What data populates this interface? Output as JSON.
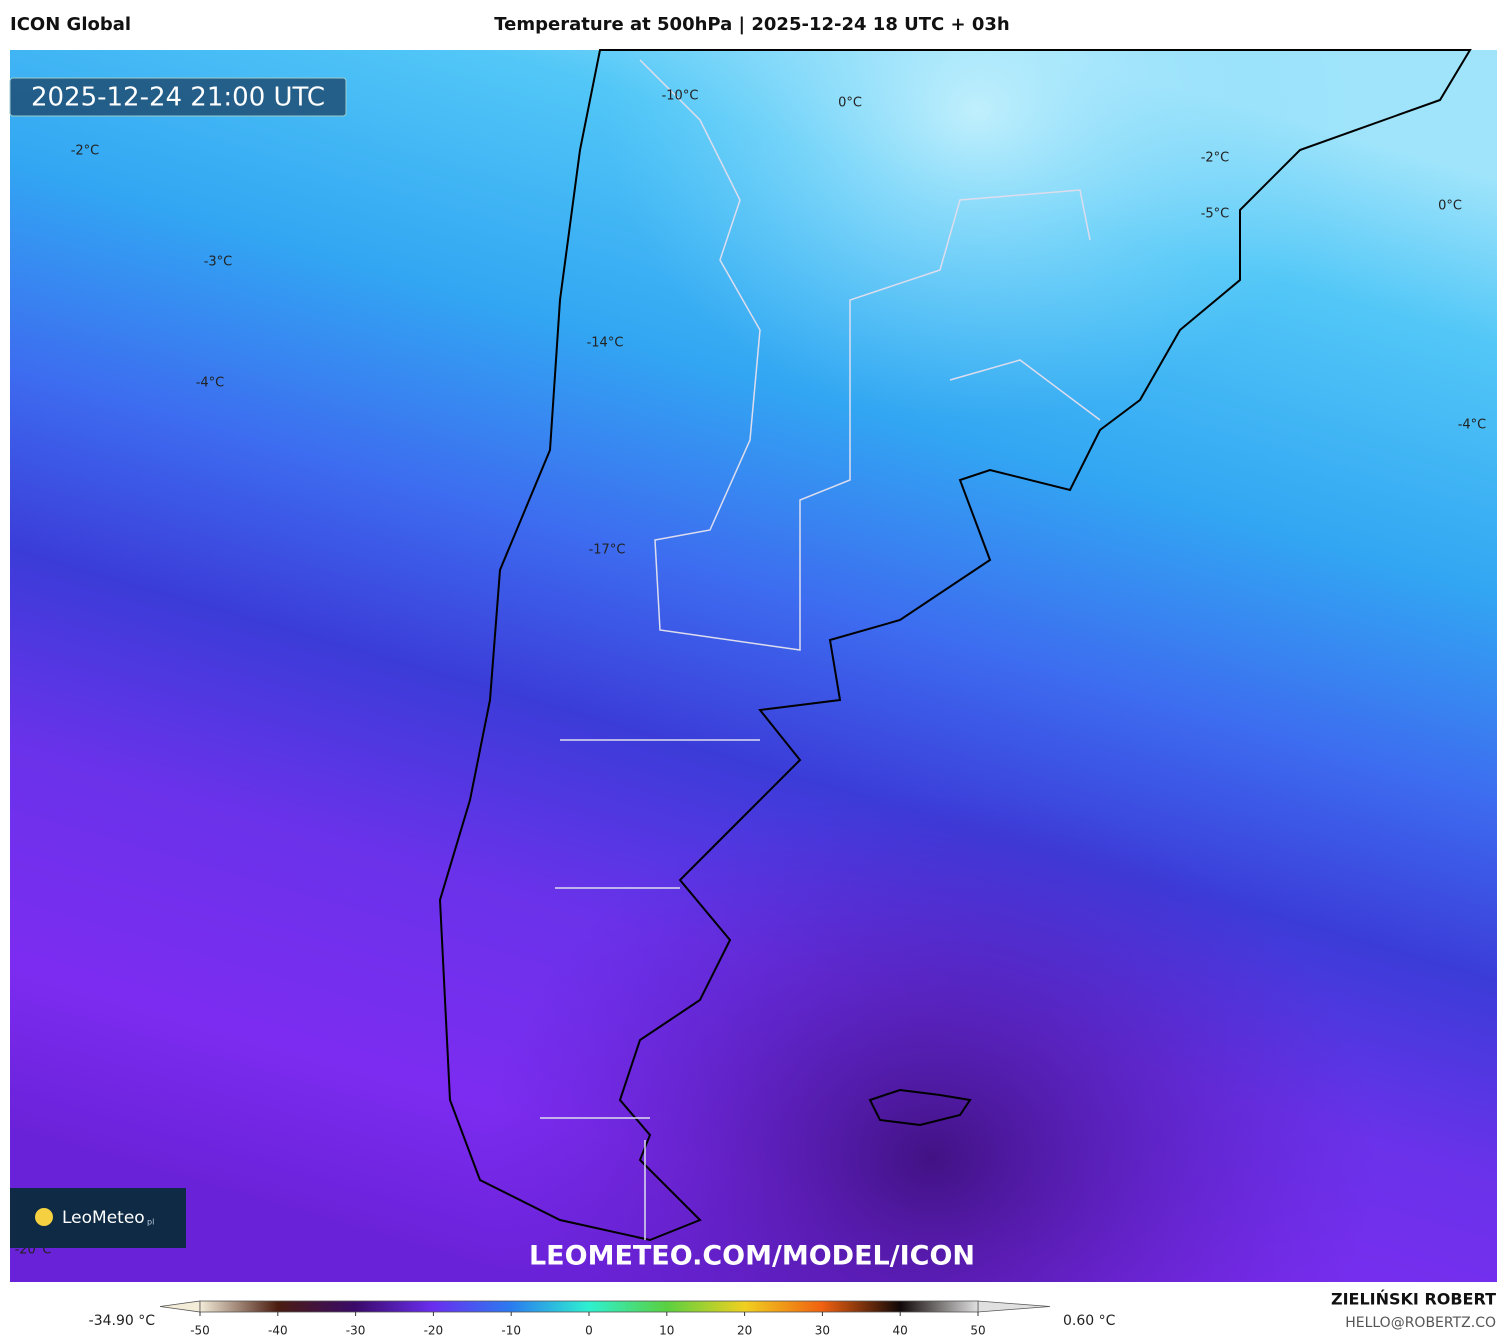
{
  "header": {
    "model": "ICON Global",
    "title": "Temperature at 500hPa | 2025-12-24 18 UTC + 03h"
  },
  "map": {
    "timestamp": "2025-12-24 21:00 UTC",
    "contour_labels": [
      "-10°C",
      "0°C",
      "-2°C",
      "-2°C",
      "-5°C",
      "0°C",
      "-3°C",
      "-14°C",
      "-4°C",
      "-4°C",
      "-17°C",
      "-20°C"
    ],
    "logo": "LeoMeteo",
    "logo_suffix": "pl",
    "watermark": "LEOMETEO.COM/MODEL/ICON"
  },
  "colorbar": {
    "min_label": "-34.90 °C",
    "max_label": "0.60 °C",
    "ticks": [
      -50,
      -40,
      -30,
      -20,
      -10,
      0,
      10,
      20,
      30,
      40,
      50
    ],
    "colors": [
      "#f3ecd8",
      "#4a1c10",
      "#3a0a6a",
      "#6a2ef0",
      "#2a7cf0",
      "#2ef0d0",
      "#5ad040",
      "#f0d020",
      "#f06010",
      "#100808",
      "#e0e0e0"
    ]
  },
  "footer": {
    "author": "ZIELIŃSKI ROBERT",
    "contact": "HELLO@ROBERTZ.CO"
  }
}
